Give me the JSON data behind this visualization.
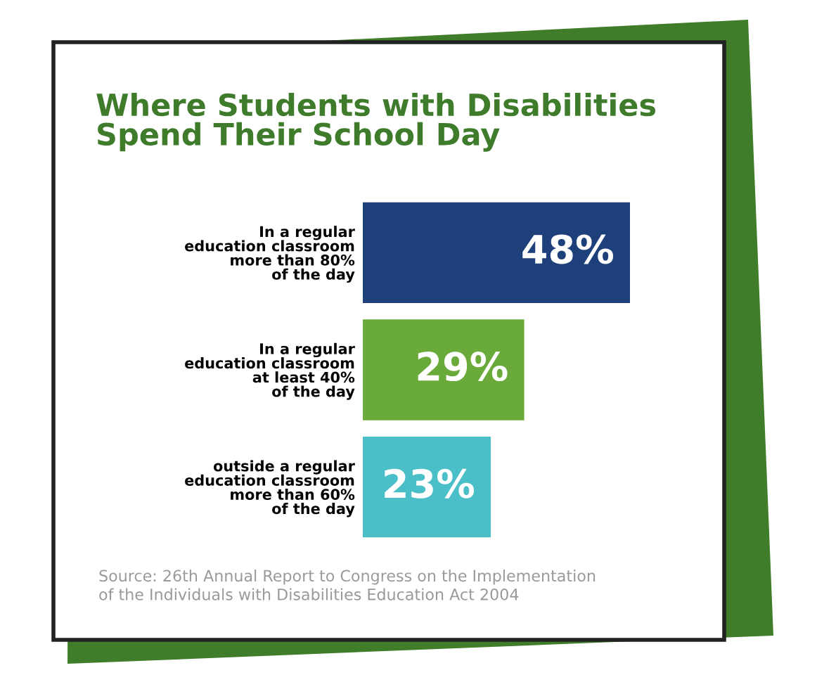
{
  "chart_data": {
    "type": "bar",
    "orientation": "horizontal",
    "data_labels": true,
    "title": "Where Students with Disabilities\nSpend Their School Day",
    "categories": [
      "In a regular\neducation classroom\nmore than 80%\nof the day",
      "In a regular\neducation classroom\nat least 40%\nof the day",
      "outside a regular\neducation classroom\nmore than 60%\nof the day"
    ],
    "values": [
      48,
      29,
      23
    ],
    "colors": [
      "#1d3f7a",
      "#6aaa3a",
      "#4bbfc8"
    ],
    "value_labels": [
      "48%",
      "29%",
      "23%"
    ],
    "annotations": [
      "Source: 26th Annual Report to Congress on the Implementation\nof the Individuals with Disabilities Education Act 2004"
    ],
    "legend": false
  }
}
